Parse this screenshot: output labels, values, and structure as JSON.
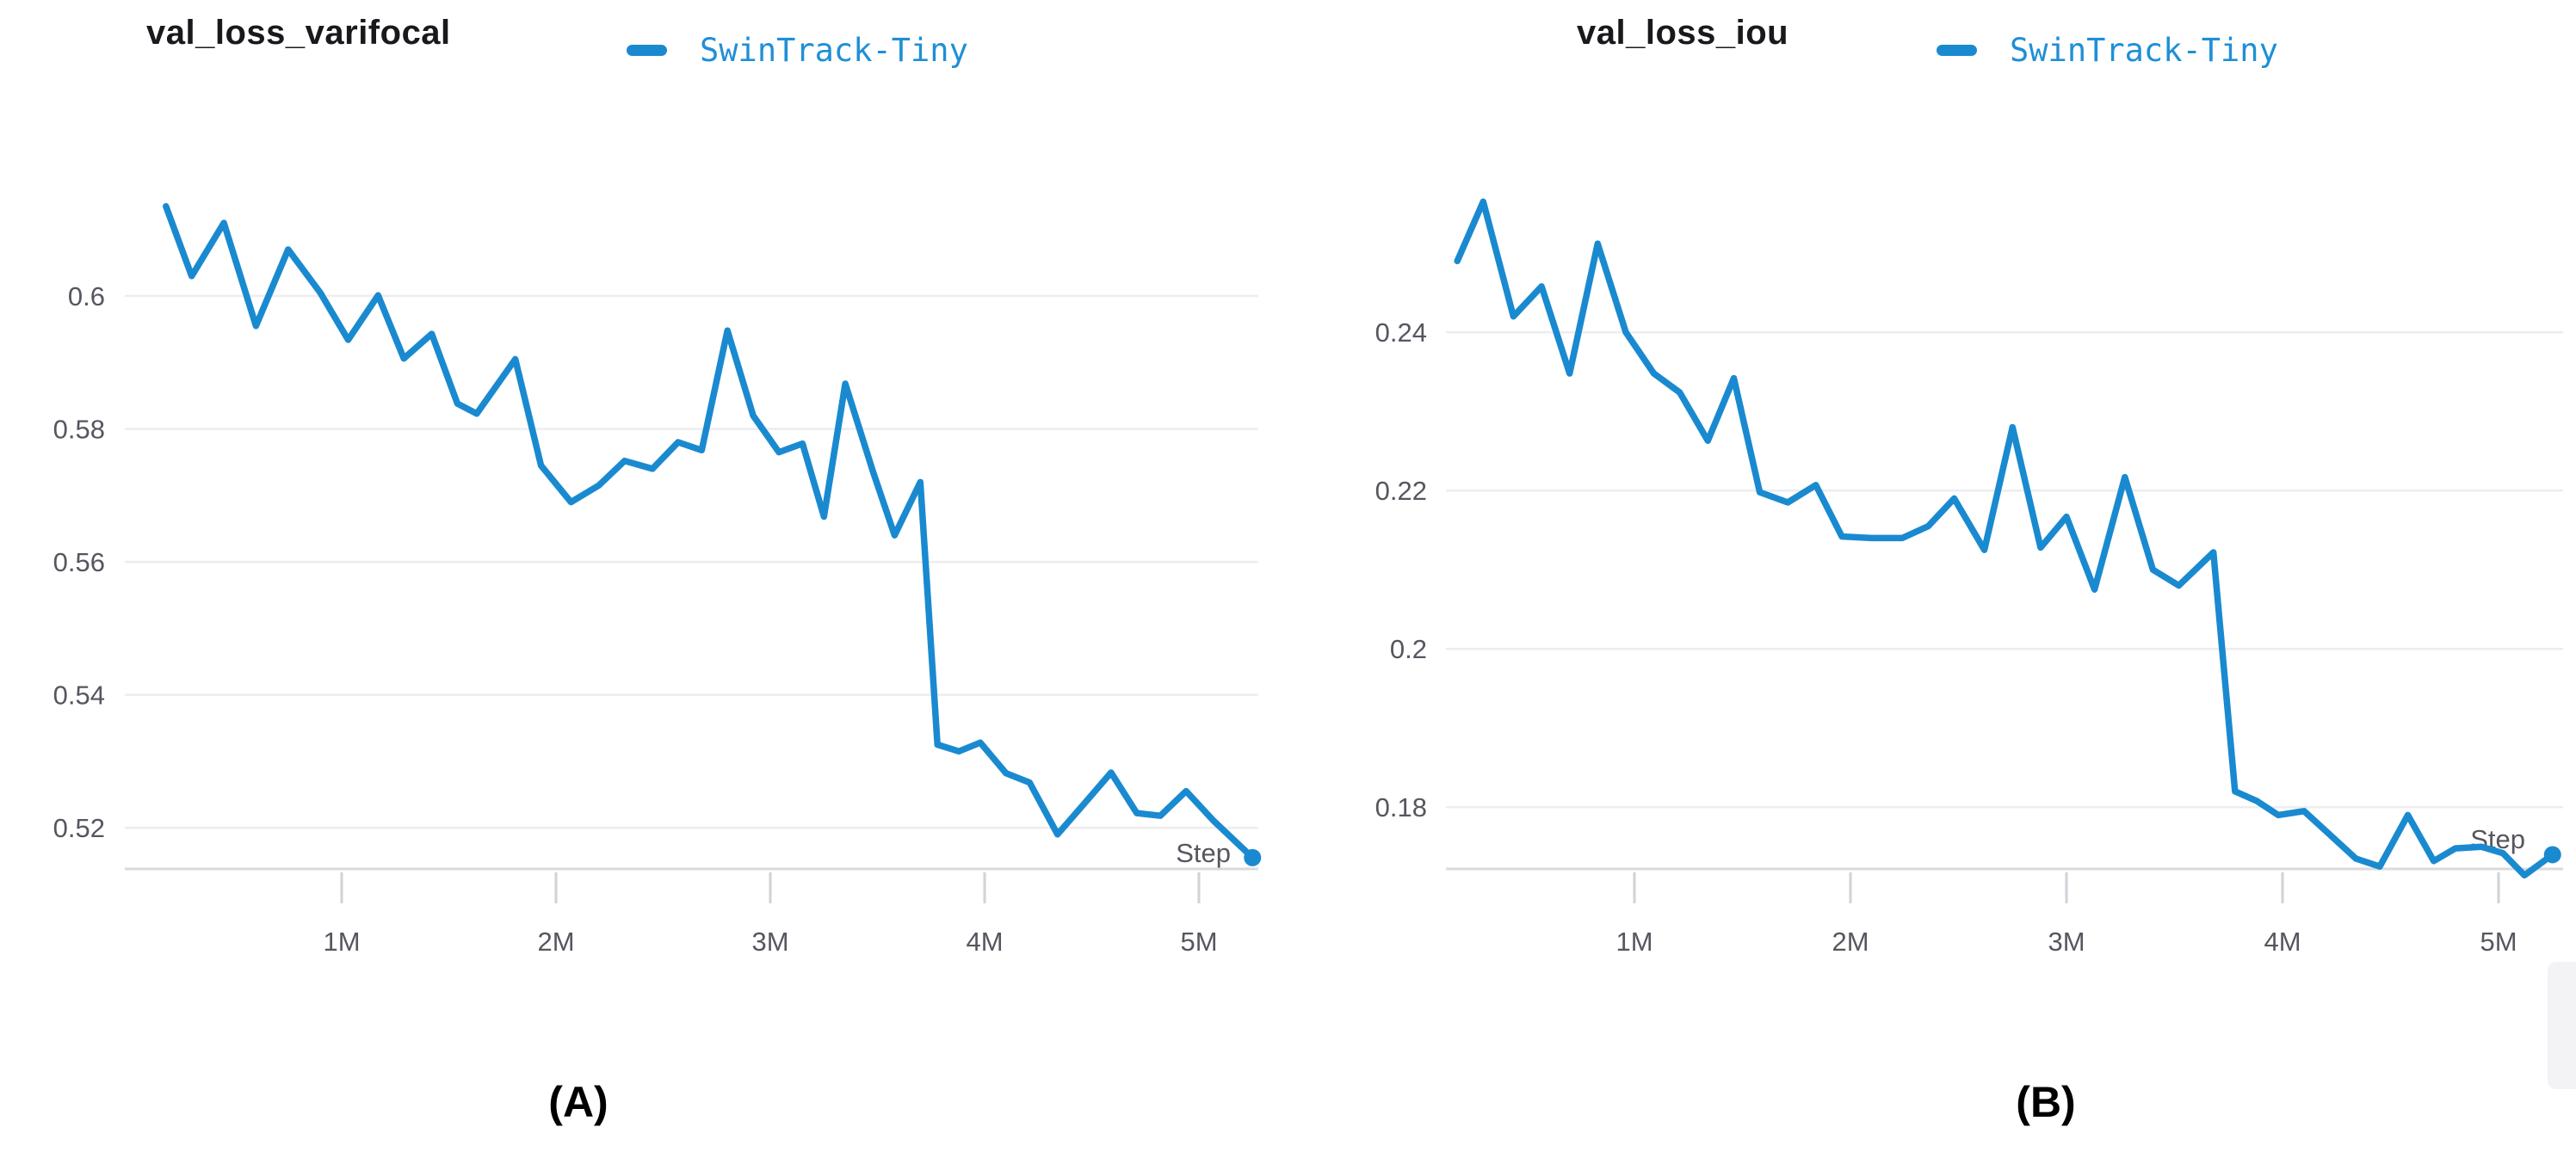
{
  "figure": {
    "captions": [
      {
        "label": "(A)"
      },
      {
        "label": "(B)"
      }
    ]
  },
  "colors": {
    "background": "#ffffff",
    "line": "#1a8ad0",
    "legend_text": "#1f8fd6",
    "title_text": "#19191d",
    "tick_label": "#565660",
    "grid": "#ededf0",
    "axis": "#dbdbdf",
    "tick_mark": "#d2d2d7",
    "watermark": "#f3f3f5"
  },
  "chart_data": [
    {
      "type": "line",
      "title": "val_loss_varifocal",
      "xlabel": "Step",
      "x_unit": "M steps",
      "grid": "horizontal",
      "legend_position": "top",
      "end_marker": "dot",
      "xlim": [
        0,
        5.4
      ],
      "ylim": [
        0.5138,
        0.618
      ],
      "x_ticks": [
        {
          "value": 1,
          "label": "1M"
        },
        {
          "value": 2,
          "label": "2M"
        },
        {
          "value": 3,
          "label": "3M"
        },
        {
          "value": 4,
          "label": "4M"
        },
        {
          "value": 5,
          "label": "5M"
        }
      ],
      "y_ticks": [
        {
          "value": 0.6,
          "label": "0.6"
        },
        {
          "value": 0.58,
          "label": "0.58"
        },
        {
          "value": 0.56,
          "label": "0.56"
        },
        {
          "value": 0.54,
          "label": "0.54"
        },
        {
          "value": 0.52,
          "label": "0.52"
        }
      ],
      "series": [
        {
          "name": "SwinTrack-Tiny",
          "x": [
            0.18,
            0.3,
            0.45,
            0.6,
            0.75,
            0.9,
            1.03,
            1.17,
            1.29,
            1.42,
            1.54,
            1.63,
            1.81,
            1.93,
            2.07,
            2.2,
            2.32,
            2.45,
            2.57,
            2.68,
            2.8,
            2.92,
            3.04,
            3.15,
            3.25,
            3.35,
            3.48,
            3.58,
            3.7,
            3.78,
            3.88,
            3.98,
            4.1,
            4.21,
            4.34,
            4.47,
            4.59,
            4.71,
            4.82,
            4.94,
            5.07,
            5.25
          ],
          "y": [
            0.6135,
            0.603,
            0.611,
            0.5955,
            0.607,
            0.6005,
            0.5934,
            0.6001,
            0.5906,
            0.5943,
            0.5838,
            0.5823,
            0.5905,
            0.5745,
            0.569,
            0.5715,
            0.5752,
            0.574,
            0.578,
            0.5768,
            0.5948,
            0.582,
            0.5765,
            0.5778,
            0.5668,
            0.5868,
            0.5735,
            0.564,
            0.572,
            0.5325,
            0.5315,
            0.5328,
            0.5282,
            0.5268,
            0.519,
            0.5238,
            0.5283,
            0.5222,
            0.5218,
            0.5255,
            0.521,
            0.5155
          ]
        }
      ]
    },
    {
      "type": "line",
      "title": "val_loss_iou",
      "xlabel": "Step",
      "x_unit": "M steps",
      "grid": "horizontal",
      "legend_position": "top",
      "end_marker": "dot",
      "xlim": [
        0,
        5.4
      ],
      "ylim": [
        0.1722,
        0.2597
      ],
      "x_ticks": [
        {
          "value": 1,
          "label": "1M"
        },
        {
          "value": 2,
          "label": "2M"
        },
        {
          "value": 3,
          "label": "3M"
        },
        {
          "value": 4,
          "label": "4M"
        },
        {
          "value": 5,
          "label": "5M"
        }
      ],
      "y_ticks": [
        {
          "value": 0.24,
          "label": "0.24"
        },
        {
          "value": 0.22,
          "label": "0.22"
        },
        {
          "value": 0.2,
          "label": "0.2"
        },
        {
          "value": 0.18,
          "label": "0.18"
        }
      ],
      "series": [
        {
          "name": "SwinTrack-Tiny",
          "x": [
            0.18,
            0.3,
            0.44,
            0.57,
            0.7,
            0.83,
            0.96,
            1.09,
            1.21,
            1.34,
            1.46,
            1.58,
            1.71,
            1.84,
            1.96,
            2.1,
            2.24,
            2.36,
            2.48,
            2.62,
            2.75,
            2.88,
            3.0,
            3.13,
            3.27,
            3.4,
            3.52,
            3.68,
            3.78,
            3.88,
            3.98,
            4.1,
            4.22,
            4.34,
            4.45,
            4.58,
            4.7,
            4.8,
            4.92,
            5.02,
            5.12,
            5.25
          ],
          "y": [
            0.249,
            0.2565,
            0.242,
            0.2458,
            0.2348,
            0.2512,
            0.24,
            0.2348,
            0.2324,
            0.2263,
            0.2342,
            0.2198,
            0.2185,
            0.2207,
            0.2142,
            0.214,
            0.214,
            0.2155,
            0.219,
            0.2125,
            0.228,
            0.2128,
            0.2167,
            0.2075,
            0.2217,
            0.21,
            0.208,
            0.2122,
            0.182,
            0.1808,
            0.179,
            0.1795,
            0.1765,
            0.1735,
            0.1725,
            0.179,
            0.1732,
            0.1748,
            0.175,
            0.1742,
            0.1714,
            0.174
          ]
        }
      ]
    }
  ]
}
